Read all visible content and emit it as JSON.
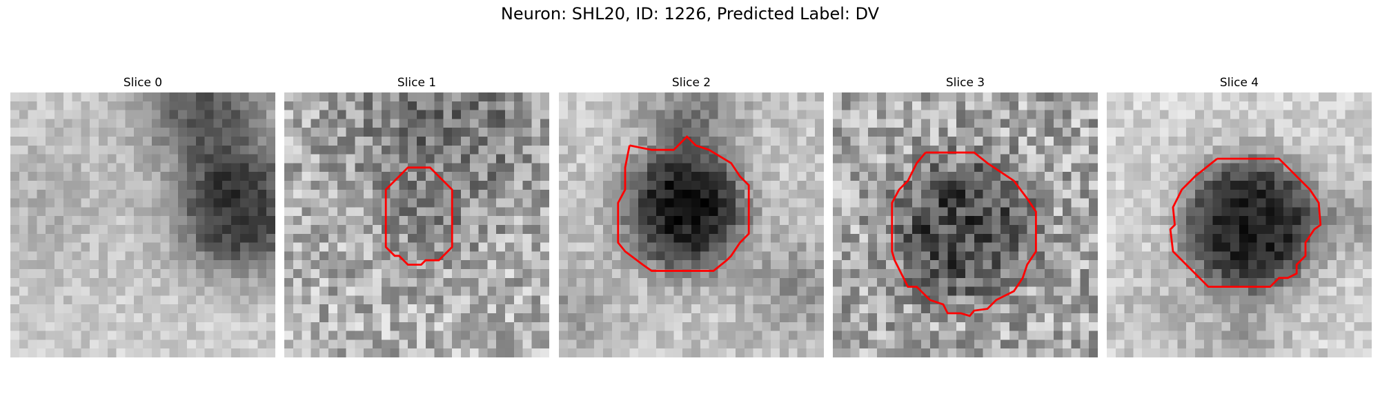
{
  "figure": {
    "suptitle": "Neuron: SHL20, ID: 1226, Predicted Label: DV"
  },
  "panels": [
    {
      "title": "Slice 0",
      "has_contour": false
    },
    {
      "title": "Slice 1",
      "has_contour": true
    },
    {
      "title": "Slice 2",
      "has_contour": true
    },
    {
      "title": "Slice 3",
      "has_contour": true
    },
    {
      "title": "Slice 4",
      "has_contour": true
    }
  ],
  "colors": {
    "contour": "#ff0000",
    "colormap": "gray_r"
  }
}
